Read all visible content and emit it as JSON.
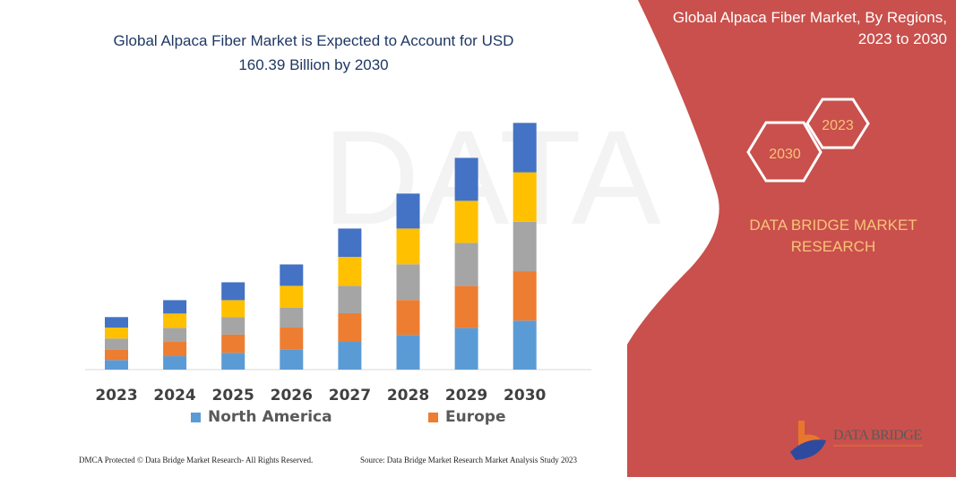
{
  "header": {
    "title_line1": "Global Alpaca Fiber Market is Expected to Account for USD",
    "title_line2": "160.39 Billion by 2030"
  },
  "side_panel": {
    "title_line1": "Global Alpaca Fiber Market, By Regions,",
    "title_line2": "2023 to 2030",
    "hex_start": "2023",
    "hex_end": "2030",
    "brand_line1": "DATA BRIDGE MARKET",
    "brand_line2": "RESEARCH",
    "logo_text": "DATA BRIDGE",
    "panel_color": "#c9504c",
    "accent_color": "#f8c27a"
  },
  "footer": {
    "left": "DMCA Protected © Data Bridge Market Research-  All Rights Reserved.",
    "right": "Source: Data Bridge Market Research  Market Analysis Study 2023"
  },
  "chart_data": {
    "type": "bar",
    "stacked": true,
    "title": "Global Alpaca Fiber Market is Expected to Account for USD 160.39 Billion by 2030",
    "categories": [
      "2023",
      "2024",
      "2025",
      "2026",
      "2027",
      "2028",
      "2029",
      "2030"
    ],
    "series": [
      {
        "name": "North America",
        "color": "#5b9bd5",
        "values": [
          6.2,
          8.7,
          10.9,
          13.2,
          18.0,
          22.5,
          27.1,
          31.8
        ]
      },
      {
        "name": "Europe",
        "color": "#ed7d31",
        "values": [
          7.0,
          9.3,
          11.8,
          14.1,
          18.6,
          22.7,
          27.3,
          32.1
        ]
      },
      {
        "color": "#a5a5a5",
        "values": [
          7.0,
          9.1,
          11.4,
          13.0,
          17.8,
          23.2,
          27.9,
          32.1
        ]
      },
      {
        "color": "#ffc000",
        "values": [
          7.1,
          9.3,
          11.0,
          14.1,
          18.8,
          23.2,
          27.3,
          32.1
        ]
      },
      {
        "color": "#4472c4",
        "values": [
          6.8,
          8.7,
          11.6,
          13.9,
          18.4,
          22.7,
          27.9,
          32.1
        ]
      }
    ],
    "xlabel": "",
    "ylabel": "",
    "ylim": [
      0,
      160.39
    ],
    "y_axis_visible": false,
    "grid": false,
    "legend_placement": "bottom"
  }
}
